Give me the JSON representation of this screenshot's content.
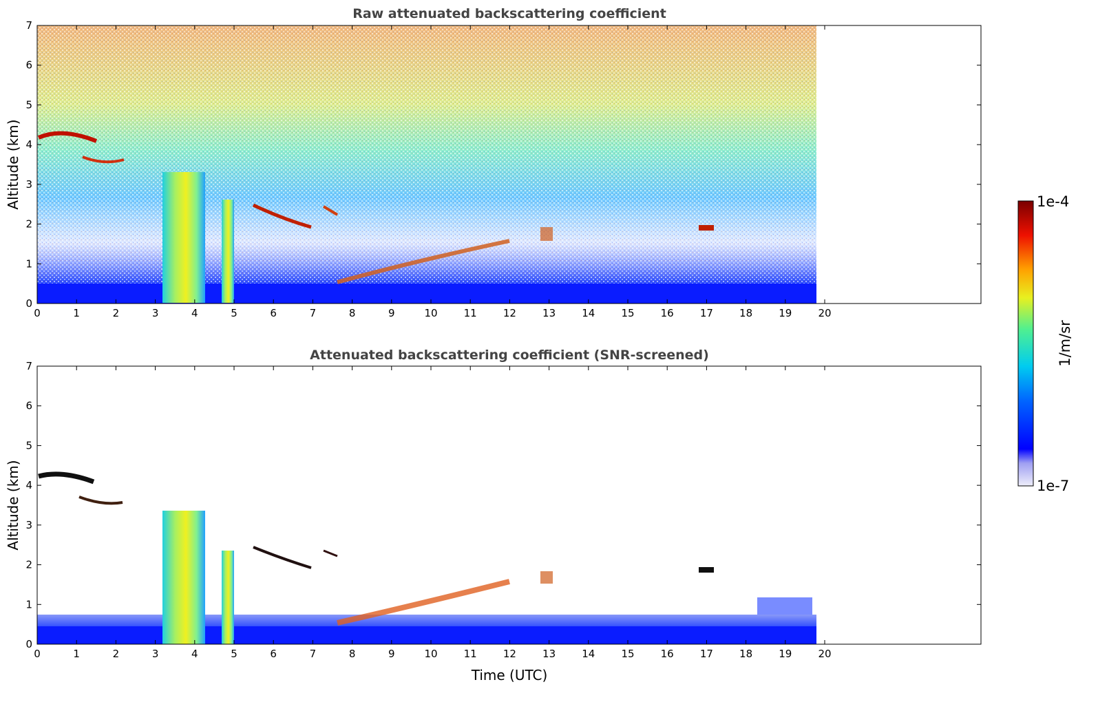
{
  "chart_data": [
    {
      "type": "heatmap",
      "title": "Raw attenuated backscattering coefficient",
      "xlabel": "",
      "ylabel": "Altitude (km)",
      "xlim": [
        0,
        24
      ],
      "ylim": [
        0,
        7
      ],
      "data_x_range": [
        0,
        19.8
      ],
      "x_ticks": [
        "0",
        "1",
        "2",
        "3",
        "4",
        "5",
        "6",
        "7",
        "8",
        "9",
        "10",
        "11",
        "12",
        "13",
        "14",
        "15",
        "16",
        "17",
        "18",
        "19",
        "20"
      ],
      "y_ticks": [
        "0",
        "1",
        "2",
        "3",
        "4",
        "5",
        "6",
        "7"
      ],
      "features": [
        {
          "label": "surface layer",
          "x": [
            0,
            19.8
          ],
          "y": [
            0,
            0.5
          ]
        },
        {
          "label": "dense column",
          "x": [
            3.2,
            4.3
          ],
          "y": [
            0,
            3.5
          ]
        },
        {
          "label": "dense column",
          "x": [
            4.7,
            5.0
          ],
          "y": [
            0,
            2.3
          ]
        },
        {
          "label": "cloud layer",
          "x": [
            0.0,
            1.5
          ],
          "y": [
            4.0,
            4.3
          ]
        },
        {
          "label": "cloud layer",
          "x": [
            5.3,
            7.0
          ],
          "y": [
            1.8,
            2.6
          ]
        },
        {
          "label": "cloud layer",
          "x": [
            7.5,
            12.0
          ],
          "y": [
            0.4,
            1.5
          ]
        },
        {
          "label": "cloud fragment",
          "x": [
            12.8,
            13.1
          ],
          "y": [
            1.6,
            1.9
          ]
        },
        {
          "label": "cloud fragment",
          "x": [
            16.8,
            17.2
          ],
          "y": [
            1.8,
            1.95
          ]
        }
      ]
    },
    {
      "type": "heatmap",
      "title": "Attenuated backscattering coefficient (SNR-screened)",
      "xlabel": "Time (UTC)",
      "ylabel": "Altitude (km)",
      "xlim": [
        0,
        24
      ],
      "ylim": [
        0,
        7
      ],
      "data_x_range": [
        0,
        19.8
      ],
      "x_ticks": [
        "0",
        "1",
        "2",
        "3",
        "4",
        "5",
        "6",
        "7",
        "8",
        "9",
        "10",
        "11",
        "12",
        "13",
        "14",
        "15",
        "16",
        "17",
        "18",
        "19",
        "20"
      ],
      "y_ticks": [
        "0",
        "1",
        "2",
        "3",
        "4",
        "5",
        "6",
        "7"
      ],
      "features": [
        {
          "label": "surface layer",
          "x": [
            0,
            19.8
          ],
          "y": [
            0,
            0.5
          ]
        },
        {
          "label": "dense column",
          "x": [
            3.2,
            4.3
          ],
          "y": [
            0,
            3.5
          ]
        },
        {
          "label": "dense column",
          "x": [
            4.7,
            5.0
          ],
          "y": [
            0,
            2.3
          ]
        },
        {
          "label": "cloud layer",
          "x": [
            0.0,
            1.5
          ],
          "y": [
            4.0,
            4.3
          ]
        },
        {
          "label": "cloud layer",
          "x": [
            5.3,
            7.0
          ],
          "y": [
            1.8,
            2.6
          ]
        },
        {
          "label": "cloud layer",
          "x": [
            7.5,
            12.0
          ],
          "y": [
            0.4,
            1.5
          ]
        }
      ]
    }
  ],
  "colorbar": {
    "max_label": "1e-4",
    "min_label": "1e-7",
    "unit_label": "1/m/sr",
    "scale": "log",
    "colors": [
      "#e8e8f8",
      "#b8b8f0",
      "#8888f0",
      "#0000ff",
      "#0050ff",
      "#00a0ff",
      "#00e0e0",
      "#40f0a0",
      "#a0f040",
      "#f0f000",
      "#ffb000",
      "#ff5000",
      "#e00000",
      "#800000"
    ]
  }
}
